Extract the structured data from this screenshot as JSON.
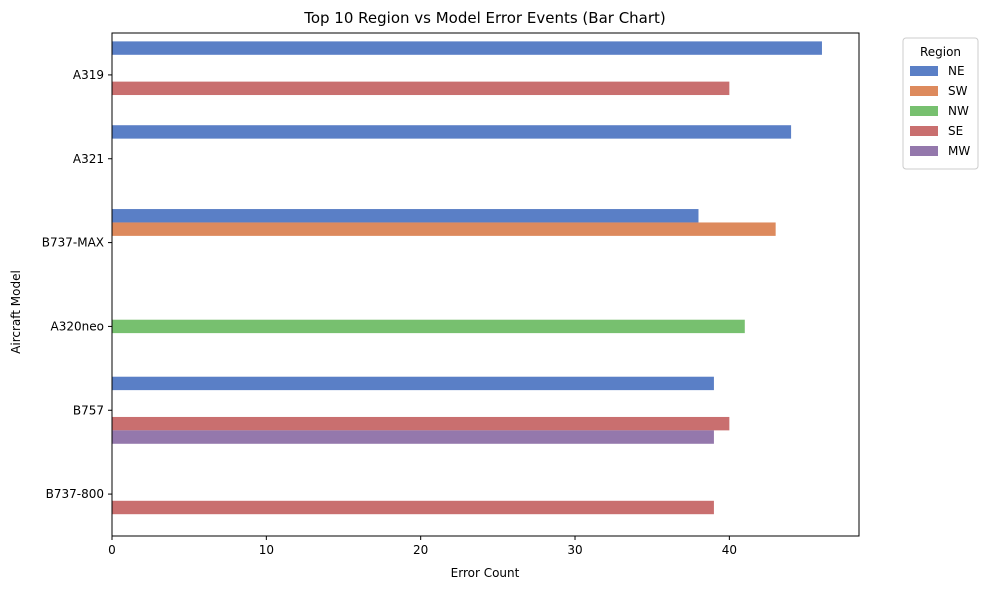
{
  "chart_data": {
    "type": "bar",
    "orientation": "horizontal",
    "title": "Top 10 Region vs Model Error Events (Bar Chart)",
    "xlabel": "Error Count",
    "ylabel": "Aircraft Model",
    "xlim": [
      0,
      48.4
    ],
    "xticks": [
      "0",
      "10",
      "20",
      "30",
      "40"
    ],
    "grid": false,
    "legend_placement": "outside-top-right",
    "legend_title": "Region",
    "categories": [
      "A319",
      "A321",
      "B737-MAX",
      "A320neo",
      "B757",
      "B737-800"
    ],
    "series": [
      {
        "name": "NE",
        "color": "#5a7fc6",
        "values": [
          46,
          44,
          38,
          null,
          39,
          null
        ]
      },
      {
        "name": "SW",
        "color": "#dd8a5d",
        "values": [
          null,
          null,
          43,
          null,
          null,
          null
        ]
      },
      {
        "name": "NW",
        "color": "#77c06f",
        "values": [
          null,
          null,
          null,
          41,
          null,
          null
        ]
      },
      {
        "name": "SE",
        "color": "#c96f6f",
        "values": [
          40,
          null,
          null,
          null,
          40,
          39
        ]
      },
      {
        "name": "MW",
        "color": "#9478ac",
        "values": [
          null,
          null,
          null,
          null,
          39,
          null
        ]
      }
    ]
  }
}
